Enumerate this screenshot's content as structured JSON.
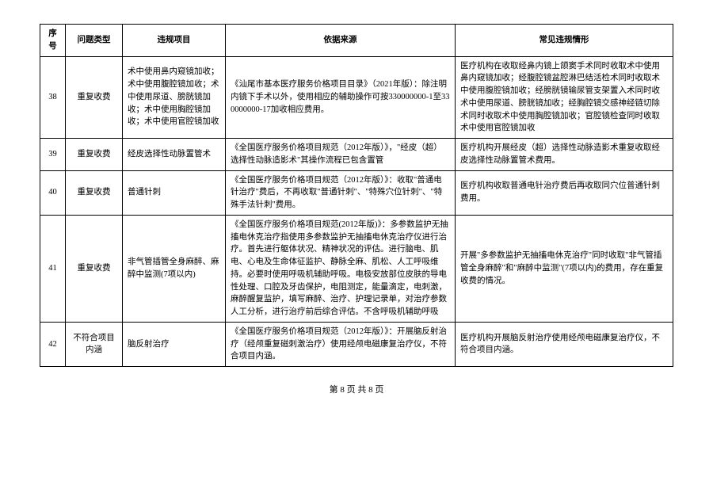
{
  "headers": {
    "num": "序号",
    "type": "问题类型",
    "item": "违规项目",
    "basis": "依据来源",
    "case": "常见违规情形"
  },
  "rows": [
    {
      "num": "38",
      "type": "重复收费",
      "item": "术中使用鼻内窥镜加收；术中使用腹腔镜加收；术中使用尿道、膀胱镜加收；术中使用胸腔镜加收；术中使用官腔镜加收",
      "basis": "《汕尾市基本医疗服务价格项目目录》（2021年版）：除注明内镜下手术以外，使用相应的辅助操作可按330000000-1至330000000-17加收相应费用。",
      "case": "医疗机构在收取经鼻内镜上颌窦手术同时收取术中使用鼻内窥镜加收；经腹腔镜盆腔淋巴结活检术同时收取术中使用腹腔镜加收；经膀胱镜输尿管支架置入术同时收术中使用尿道、膀胱镜加收；经胸腔镜交感神经链切除术同时收取术中使用胸腔镜加收；官腔镜检查同时收取术中使用官腔镜加收"
    },
    {
      "num": "39",
      "type": "重复收费",
      "item": "经皮选择性动脉置管术",
      "basis": "《全国医疗服务价格项目规范（2012年版）》，\"经皮（超）选择性动脉造影术\"其操作流程已包含置管",
      "case": "医疗机构开展经皮（超）选择性动脉造影术重复收取经皮选择性动脉置管术费用。"
    },
    {
      "num": "40",
      "type": "重复收费",
      "item": "普通针刺",
      "basis": "《全国医疗服务价格项目规范（2012年版）》：收取\"普通电针治疗\"费后，不再收取\"普通针刺\"、\"特殊穴位针刺\"、\"特殊手法针刺\"费用。",
      "case": "医疗机构收取普通电针治疗费后再收取同穴位普通针刺费用。"
    },
    {
      "num": "41",
      "type": "重复收费",
      "item": "非气管插管全身麻醉、麻醉中监测(7项以内)",
      "basis": "《全国医疗服务价格项目规范(2012年版)》：多参数监护无抽搐电休克治疗指使用多参数监护无抽搐电休克治疗仪进行治疗。首先进行躯体状况、精神状况的评估。进行脑电、肌电、心电及生命体征监护、静脉全麻、肌松、人工呼吸维持。必要时使用呼吸机辅助呼吸。电极安放部位皮肤的导电性处理、口腔及牙齿保护，电阻测定，能量滴定，电刺激，麻醉醒复监护，填写麻醉、治疗、护理记录单，对治疗参数人工分析，进行治疗前后综合评估。不含呼吸机辅助呼吸",
      "case": "开展\"多参数监护无抽搐电休克治疗\"同时收取\"非气管插管全身麻醉\"和\"麻醉中监测\"(7项以内)的费用，存在重复收费的情况。"
    },
    {
      "num": "42",
      "type": "不符合项目内涵",
      "item": "脑反射治疗",
      "basis": "《全国医疗服务价格项目规范（2012年版）》：开展脑反射治疗（经颅重复磁刺激治疗）使用经颅电磁康复治疗仪，不符合项目内涵。",
      "case": "医疗机构开展脑反射治疗使用经颅电磁康复治疗仪，不符合项目内涵。"
    }
  ],
  "footer": "第 8 页  共 8 页"
}
